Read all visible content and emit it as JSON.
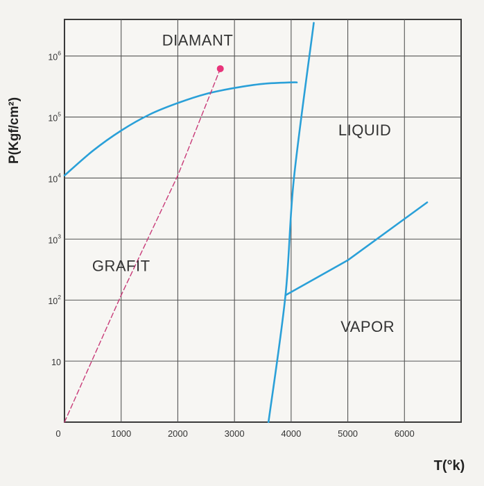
{
  "chart_data": {
    "type": "line",
    "xlabel": "T(°k)",
    "ylabel": "P(Kgf/cm²)",
    "xlim": [
      0,
      7000
    ],
    "ylim_log10": [
      0,
      6.6
    ],
    "y_scale": "log",
    "grid": true,
    "x_ticks": [
      {
        "value": 0,
        "label": "0"
      },
      {
        "value": 1000,
        "label": "1000"
      },
      {
        "value": 2000,
        "label": "2000"
      },
      {
        "value": 3000,
        "label": "3000"
      },
      {
        "value": 4000,
        "label": "4000"
      },
      {
        "value": 5000,
        "label": "5000"
      },
      {
        "value": 6000,
        "label": "6000"
      }
    ],
    "y_ticks": [
      {
        "value": 10,
        "base": "10",
        "exp": ""
      },
      {
        "value": 100,
        "base": "10",
        "exp": "2"
      },
      {
        "value": 1000,
        "base": "10",
        "exp": "3"
      },
      {
        "value": 10000,
        "base": "10",
        "exp": "4"
      },
      {
        "value": 100000,
        "base": "10",
        "exp": "5"
      },
      {
        "value": 1000000,
        "base": "10",
        "exp": "6"
      }
    ],
    "regions": [
      {
        "label": "DIAMANT",
        "x": 2350,
        "y": 1500000
      },
      {
        "label": "LIQUID",
        "x": 5300,
        "y": 50000
      },
      {
        "label": "GRAFIT",
        "x": 1000,
        "y": 300
      },
      {
        "label": "VAPOR",
        "x": 5350,
        "y": 30
      }
    ],
    "series": [
      {
        "style": "solid",
        "color": "#2aa0d8",
        "points": [
          [
            0,
            11000
          ],
          [
            500,
            28000
          ],
          [
            1000,
            60000
          ],
          [
            1500,
            110000
          ],
          [
            2000,
            170000
          ],
          [
            2500,
            240000
          ],
          [
            3000,
            300000
          ],
          [
            3500,
            350000
          ],
          [
            4000,
            370000
          ],
          [
            4100,
            370000
          ]
        ]
      },
      {
        "style": "solid",
        "color": "#2aa0d8",
        "points": [
          [
            3600,
            1
          ],
          [
            3900,
            120
          ],
          [
            4050,
            10000
          ],
          [
            4400,
            3500000
          ]
        ]
      },
      {
        "style": "solid",
        "color": "#2aa0d8",
        "points": [
          [
            3900,
            120
          ],
          [
            5000,
            450
          ],
          [
            6400,
            4000
          ]
        ]
      },
      {
        "style": "dashed",
        "color": "#c83a78",
        "points": [
          [
            0,
            1
          ],
          [
            1000,
            120
          ],
          [
            2000,
            11000
          ],
          [
            2750,
            620000
          ]
        ]
      }
    ],
    "markers": [
      {
        "x": 2750,
        "y": 620000,
        "color": "#e8347a"
      }
    ]
  }
}
